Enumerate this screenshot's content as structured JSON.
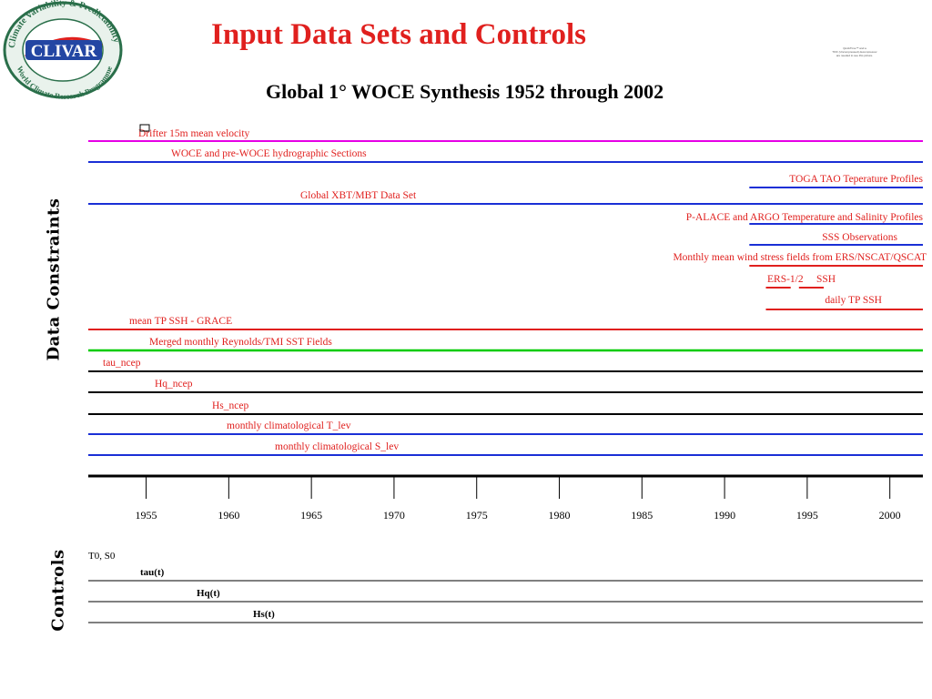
{
  "logo": {
    "arc_text_top": "Climate Variability & Predictability",
    "wordmark": "CLIVAR",
    "arc_text_bottom": "World Climate Research Programme",
    "colors": {
      "ring": "#2a6f4a",
      "fill": "#e9f2ec",
      "wordmark_bg": "#2346a3",
      "wordmark_text": "#ffffff",
      "accent": "#e0201e"
    }
  },
  "title": "Input Data Sets and Controls",
  "tiny_note": [
    "QuickTime™ and a",
    "TIFF (Uncompressed) decompressor",
    "are needed to see this picture."
  ],
  "subtitle": "Global 1° WOCE Synthesis 1952 through 2002",
  "side_labels": {
    "data": "Data Constraints",
    "controls": "Controls"
  },
  "colors": {
    "red": "#e0201e",
    "blue": "#1a2fd6",
    "green": "#00cc00",
    "magenta": "#e600e6",
    "black": "#000000"
  },
  "chart_data": {
    "type": "timeline",
    "x_axis": {
      "range": [
        1951.5,
        2002
      ],
      "ticks": [
        1955,
        1960,
        1965,
        1970,
        1975,
        1980,
        1985,
        1990,
        1995,
        2000
      ],
      "tick_labels": [
        "1955",
        "1960",
        "1965",
        "1970",
        "1975",
        "1980",
        "1985",
        "1990",
        "1995",
        "2000"
      ]
    },
    "data_constraints": [
      {
        "label": "Drifter 15m mean velocity",
        "start": 1952,
        "end": 2002,
        "color": "magenta"
      },
      {
        "label": "WOCE and pre-WOCE hydrographic Sections",
        "start": 1952,
        "end": 2002,
        "color": "blue"
      },
      {
        "label": "TOGA TAO Teperature Profiles",
        "start": 1991.5,
        "end": 2002,
        "color": "blue"
      },
      {
        "label": "Global XBT/MBT Data Set",
        "start": 1952,
        "end": 2002,
        "color": "blue"
      },
      {
        "label": "P-ALACE and ARGO Temperature and Salinity Profiles",
        "start": 1991.5,
        "end": 2002,
        "color": "blue"
      },
      {
        "label": "SSS Observations",
        "start": 1991.5,
        "end": 2002,
        "color": "blue"
      },
      {
        "label": "Monthly mean wind stress fields from ERS/NSCAT/QSCAT",
        "start": 1991.5,
        "end": 2002,
        "color": "red"
      },
      {
        "label": "ERS-1/2",
        "start": 1992.5,
        "end": 1994,
        "color": "red"
      },
      {
        "label": "SSH",
        "start": 1994.5,
        "end": 1996,
        "color": "red"
      },
      {
        "label": "daily TP SSH",
        "start": 1992.5,
        "end": 2002,
        "color": "red"
      },
      {
        "label": "mean TP SSH - GRACE",
        "start": 1952,
        "end": 2002,
        "color": "red"
      },
      {
        "label": "Merged  monthly  Reynolds/TMI SST Fields",
        "start": 1952,
        "end": 2002,
        "color": "green"
      },
      {
        "label": "tau_ncep",
        "start": 1952,
        "end": 2002,
        "color": "black"
      },
      {
        "label": "Hq_ncep",
        "start": 1952,
        "end": 2002,
        "color": "black"
      },
      {
        "label": "Hs_ncep",
        "start": 1952,
        "end": 2002,
        "color": "black"
      },
      {
        "label": "monthly  climatological T_lev",
        "start": 1952,
        "end": 2002,
        "color": "blue"
      },
      {
        "label": "monthly  climatological S_lev",
        "start": 1952,
        "end": 2002,
        "color": "blue"
      }
    ],
    "controls": [
      {
        "label": "T0, S0"
      },
      {
        "label": "tau(t)",
        "start": 1952,
        "end": 2002
      },
      {
        "label": "Hq(t)",
        "start": 1952,
        "end": 2002
      },
      {
        "label": "Hs(t)",
        "start": 1952,
        "end": 2002
      }
    ]
  }
}
